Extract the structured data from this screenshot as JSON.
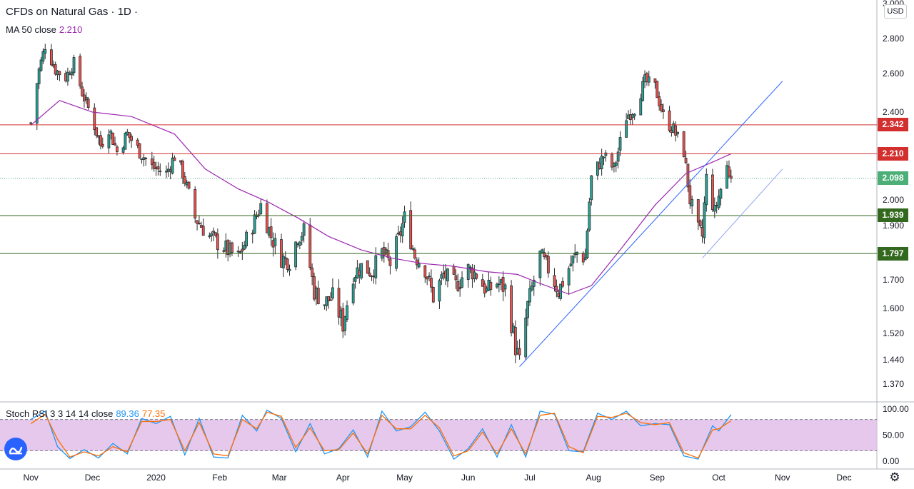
{
  "legend": {
    "title": "CFDs on Natural Gas · 1D ·",
    "ma_label": "MA 50 close",
    "ma_value": "2.210",
    "rsi_label": "Stoch RSI 3 3 14 14 close",
    "rsi_k": "89.36",
    "rsi_d": "77.35"
  },
  "price_axis": {
    "currency": "USD"
  },
  "colors": {
    "up": "#26a69a",
    "down": "#ef5350",
    "candle": "#2b2b2b",
    "ma": "#9c27b0",
    "trend": "#2962ff",
    "trend_light": "#90a4f0",
    "resistance": "#d32f2f",
    "support": "#33691e",
    "last": "#4caf78",
    "stoch_k": "#2196f3",
    "stoch_d": "#ff6d00",
    "stoch_band": "#e1bee7"
  },
  "icons": {
    "logo": "tradingview-logo-icon",
    "settings": "gear-icon"
  },
  "chart_data": [
    {
      "type": "candlestick",
      "title": "CFDs on Natural Gas · 1D ·",
      "ylim": [
        1.33,
        3.0
      ],
      "y_ticks": [
        3.0,
        2.8,
        2.6,
        2.4,
        2.342,
        2.21,
        2.098,
        2.0,
        1.939,
        1.9,
        1.797,
        1.7,
        1.6,
        1.52,
        1.44,
        1.37
      ],
      "y_tick_labels": [
        "3.000",
        "2.800",
        "2.600",
        "2.400",
        "2.342",
        "2.210",
        "2.098",
        "2.000",
        "1.939",
        "1.900",
        "1.797",
        "1.700",
        "1.600",
        "1.520",
        "1.440",
        "1.370"
      ],
      "x_labels": [
        "Nov",
        "Dec",
        "2020",
        "Feb",
        "Mar",
        "Apr",
        "May",
        "Jun",
        "Jul",
        "Aug",
        "Sep",
        "Oct",
        "Nov",
        "Dec"
      ],
      "close_path": [
        [
          "2019-11-01",
          2.35
        ],
        [
          "2019-11-05",
          2.62
        ],
        [
          "2019-11-08",
          2.76
        ],
        [
          "2019-11-13",
          2.62
        ],
        [
          "2019-11-18",
          2.58
        ],
        [
          "2019-11-22",
          2.66
        ],
        [
          "2019-11-26",
          2.5
        ],
        [
          "2019-12-02",
          2.34
        ],
        [
          "2019-12-05",
          2.25
        ],
        [
          "2019-12-09",
          2.33
        ],
        [
          "2019-12-13",
          2.22
        ],
        [
          "2019-12-18",
          2.3
        ],
        [
          "2019-12-24",
          2.22
        ],
        [
          "2019-12-30",
          2.15
        ],
        [
          "2020-01-06",
          2.12
        ],
        [
          "2020-01-10",
          2.2
        ],
        [
          "2020-01-14",
          2.12
        ],
        [
          "2020-01-20",
          1.93
        ],
        [
          "2020-01-27",
          1.86
        ],
        [
          "2020-02-03",
          1.82
        ],
        [
          "2020-02-10",
          1.78
        ],
        [
          "2020-02-17",
          1.9
        ],
        [
          "2020-02-21",
          1.98
        ],
        [
          "2020-02-26",
          1.86
        ],
        [
          "2020-03-02",
          1.78
        ],
        [
          "2020-03-06",
          1.77
        ],
        [
          "2020-03-10",
          1.86
        ],
        [
          "2020-03-13",
          1.88
        ],
        [
          "2020-03-18",
          1.66
        ],
        [
          "2020-03-23",
          1.62
        ],
        [
          "2020-03-27",
          1.64
        ],
        [
          "2020-04-01",
          1.55
        ],
        [
          "2020-04-06",
          1.72
        ],
        [
          "2020-04-10",
          1.75
        ],
        [
          "2020-04-15",
          1.73
        ],
        [
          "2020-04-20",
          1.8
        ],
        [
          "2020-04-24",
          1.76
        ],
        [
          "2020-04-28",
          1.85
        ],
        [
          "2020-05-01",
          1.93
        ],
        [
          "2020-05-06",
          1.79
        ],
        [
          "2020-05-11",
          1.74
        ],
        [
          "2020-05-15",
          1.64
        ],
        [
          "2020-05-20",
          1.72
        ],
        [
          "2020-05-26",
          1.68
        ],
        [
          "2020-06-01",
          1.74
        ],
        [
          "2020-06-05",
          1.72
        ],
        [
          "2020-06-10",
          1.66
        ],
        [
          "2020-06-15",
          1.69
        ],
        [
          "2020-06-19",
          1.67
        ],
        [
          "2020-06-24",
          1.48
        ],
        [
          "2020-06-26",
          1.43
        ],
        [
          "2020-06-30",
          1.61
        ],
        [
          "2020-07-06",
          1.79
        ],
        [
          "2020-07-10",
          1.74
        ],
        [
          "2020-07-15",
          1.66
        ],
        [
          "2020-07-21",
          1.76
        ],
        [
          "2020-07-24",
          1.8
        ],
        [
          "2020-07-28",
          1.78
        ],
        [
          "2020-07-31",
          2.1
        ],
        [
          "2020-08-06",
          2.2
        ],
        [
          "2020-08-11",
          2.14
        ],
        [
          "2020-08-17",
          2.38
        ],
        [
          "2020-08-21",
          2.42
        ],
        [
          "2020-08-26",
          2.56
        ],
        [
          "2020-08-31",
          2.53
        ],
        [
          "2020-09-04",
          2.38
        ],
        [
          "2020-09-09",
          2.32
        ],
        [
          "2020-09-14",
          2.22
        ],
        [
          "2020-09-17",
          2.0
        ],
        [
          "2020-09-21",
          1.88
        ],
        [
          "2020-09-23",
          1.86
        ],
        [
          "2020-09-25",
          2.1
        ],
        [
          "2020-09-29",
          1.95
        ],
        [
          "2020-10-02",
          2.05
        ],
        [
          "2020-10-05",
          2.15
        ],
        [
          "2020-10-07",
          2.098
        ]
      ],
      "ma_50": [
        [
          "2019-11-01",
          2.34
        ],
        [
          "2019-11-15",
          2.46
        ],
        [
          "2019-12-01",
          2.4
        ],
        [
          "2019-12-20",
          2.38
        ],
        [
          "2020-01-10",
          2.3
        ],
        [
          "2020-01-25",
          2.14
        ],
        [
          "2020-02-10",
          2.05
        ],
        [
          "2020-02-25",
          1.99
        ],
        [
          "2020-03-10",
          1.93
        ],
        [
          "2020-03-25",
          1.86
        ],
        [
          "2020-04-10",
          1.81
        ],
        [
          "2020-04-25",
          1.78
        ],
        [
          "2020-05-10",
          1.76
        ],
        [
          "2020-05-25",
          1.75
        ],
        [
          "2020-06-10",
          1.73
        ],
        [
          "2020-06-25",
          1.72
        ],
        [
          "2020-07-05",
          1.69
        ],
        [
          "2020-07-20",
          1.65
        ],
        [
          "2020-07-31",
          1.68
        ],
        [
          "2020-08-15",
          1.82
        ],
        [
          "2020-08-31",
          1.98
        ],
        [
          "2020-09-15",
          2.12
        ],
        [
          "2020-09-30",
          2.18
        ],
        [
          "2020-10-07",
          2.21
        ]
      ],
      "horizontal_levels": [
        {
          "value": 2.342,
          "label": "2.342",
          "kind": "resistance"
        },
        {
          "value": 2.21,
          "label": "2.210",
          "kind": "resistance"
        },
        {
          "value": 1.939,
          "label": "1.939",
          "kind": "support"
        },
        {
          "value": 1.797,
          "label": "1.797",
          "kind": "support"
        }
      ],
      "last_price": {
        "value": 2.098,
        "label": "2.098"
      },
      "trendlines": [
        {
          "from": [
            "2020-06-26",
            1.42
          ],
          "to": [
            "2020-11-01",
            2.56
          ],
          "style": "main"
        },
        {
          "from": [
            "2020-09-23",
            1.78
          ],
          "to": [
            "2020-11-01",
            2.14
          ],
          "style": "light"
        }
      ]
    },
    {
      "type": "line",
      "title": "Stoch RSI 3 3 14 14 close",
      "ylim": [
        0,
        100
      ],
      "y_ticks": [
        0,
        50,
        100
      ],
      "y_tick_labels": [
        "0.00",
        "50.00",
        "100.00"
      ],
      "band": [
        20,
        80
      ],
      "series": [
        {
          "name": "K",
          "values": [
            [
              "2019-11-01",
              80
            ],
            [
              "2019-11-08",
              96
            ],
            [
              "2019-11-14",
              28
            ],
            [
              "2019-11-20",
              5
            ],
            [
              "2019-11-27",
              22
            ],
            [
              "2019-12-04",
              6
            ],
            [
              "2019-12-11",
              34
            ],
            [
              "2019-12-18",
              14
            ],
            [
              "2019-12-25",
              82
            ],
            [
              "2020-01-01",
              72
            ],
            [
              "2020-01-08",
              86
            ],
            [
              "2020-01-15",
              12
            ],
            [
              "2020-01-22",
              82
            ],
            [
              "2020-01-29",
              8
            ],
            [
              "2020-02-05",
              6
            ],
            [
              "2020-02-12",
              88
            ],
            [
              "2020-02-19",
              58
            ],
            [
              "2020-02-24",
              98
            ],
            [
              "2020-03-02",
              82
            ],
            [
              "2020-03-09",
              18
            ],
            [
              "2020-03-16",
              72
            ],
            [
              "2020-03-23",
              14
            ],
            [
              "2020-03-30",
              24
            ],
            [
              "2020-04-06",
              60
            ],
            [
              "2020-04-13",
              8
            ],
            [
              "2020-04-20",
              96
            ],
            [
              "2020-04-27",
              58
            ],
            [
              "2020-05-04",
              66
            ],
            [
              "2020-05-11",
              94
            ],
            [
              "2020-05-18",
              58
            ],
            [
              "2020-05-25",
              4
            ],
            [
              "2020-06-01",
              24
            ],
            [
              "2020-06-08",
              62
            ],
            [
              "2020-06-15",
              8
            ],
            [
              "2020-06-22",
              70
            ],
            [
              "2020-06-29",
              8
            ],
            [
              "2020-07-06",
              96
            ],
            [
              "2020-07-13",
              90
            ],
            [
              "2020-07-20",
              20
            ],
            [
              "2020-07-27",
              18
            ],
            [
              "2020-08-03",
              92
            ],
            [
              "2020-08-10",
              80
            ],
            [
              "2020-08-17",
              96
            ],
            [
              "2020-08-24",
              68
            ],
            [
              "2020-08-31",
              72
            ],
            [
              "2020-09-07",
              70
            ],
            [
              "2020-09-14",
              10
            ],
            [
              "2020-09-21",
              4
            ],
            [
              "2020-09-28",
              68
            ],
            [
              "2020-10-01",
              58
            ],
            [
              "2020-10-07",
              89.36
            ]
          ]
        },
        {
          "name": "D",
          "values": [
            [
              "2019-11-01",
              72
            ],
            [
              "2019-11-08",
              90
            ],
            [
              "2019-11-14",
              42
            ],
            [
              "2019-11-20",
              8
            ],
            [
              "2019-11-27",
              18
            ],
            [
              "2019-12-04",
              10
            ],
            [
              "2019-12-11",
              28
            ],
            [
              "2019-12-18",
              18
            ],
            [
              "2019-12-25",
              76
            ],
            [
              "2020-01-01",
              76
            ],
            [
              "2020-01-08",
              80
            ],
            [
              "2020-01-15",
              20
            ],
            [
              "2020-01-22",
              74
            ],
            [
              "2020-01-29",
              14
            ],
            [
              "2020-02-05",
              10
            ],
            [
              "2020-02-12",
              80
            ],
            [
              "2020-02-19",
              62
            ],
            [
              "2020-02-24",
              94
            ],
            [
              "2020-03-02",
              86
            ],
            [
              "2020-03-09",
              26
            ],
            [
              "2020-03-16",
              64
            ],
            [
              "2020-03-23",
              20
            ],
            [
              "2020-03-30",
              22
            ],
            [
              "2020-04-06",
              54
            ],
            [
              "2020-04-13",
              14
            ],
            [
              "2020-04-20",
              88
            ],
            [
              "2020-04-27",
              62
            ],
            [
              "2020-05-04",
              62
            ],
            [
              "2020-05-11",
              88
            ],
            [
              "2020-05-18",
              64
            ],
            [
              "2020-05-25",
              10
            ],
            [
              "2020-06-01",
              20
            ],
            [
              "2020-06-08",
              56
            ],
            [
              "2020-06-15",
              14
            ],
            [
              "2020-06-22",
              62
            ],
            [
              "2020-06-29",
              14
            ],
            [
              "2020-07-06",
              88
            ],
            [
              "2020-07-13",
              92
            ],
            [
              "2020-07-20",
              28
            ],
            [
              "2020-07-27",
              16
            ],
            [
              "2020-08-03",
              86
            ],
            [
              "2020-08-10",
              84
            ],
            [
              "2020-08-17",
              92
            ],
            [
              "2020-08-24",
              74
            ],
            [
              "2020-08-31",
              70
            ],
            [
              "2020-09-07",
              74
            ],
            [
              "2020-09-14",
              16
            ],
            [
              "2020-09-21",
              6
            ],
            [
              "2020-09-28",
              60
            ],
            [
              "2020-10-01",
              62
            ],
            [
              "2020-10-07",
              77.35
            ]
          ]
        }
      ]
    }
  ]
}
